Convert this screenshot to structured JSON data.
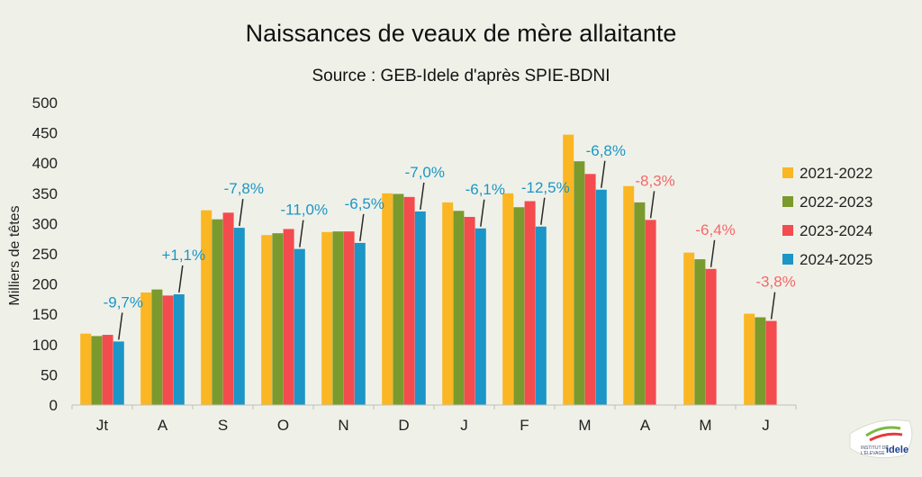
{
  "chart_data": {
    "type": "bar",
    "title": "Naissances de veaux de mère allaitante",
    "subtitle": "Source : GEB-Idele d'après SPIE-BDNI",
    "ylabel": "Milliers de têtes",
    "xlabel": "",
    "ylim": [
      0,
      500
    ],
    "yticks": [
      0,
      50,
      100,
      150,
      200,
      250,
      300,
      350,
      400,
      450,
      500
    ],
    "grid": false,
    "legend": "right",
    "categories": [
      "Jt",
      "A",
      "S",
      "O",
      "N",
      "D",
      "J",
      "F",
      "M",
      "A",
      "M",
      "J"
    ],
    "series": [
      {
        "name": "2021-2022",
        "color": "#fbb623",
        "values": [
          118,
          186,
          322,
          281,
          286,
          350,
          335,
          350,
          447,
          362,
          252,
          151
        ]
      },
      {
        "name": "2022-2023",
        "color": "#7a9a2e",
        "values": [
          114,
          191,
          307,
          284,
          287,
          349,
          321,
          327,
          403,
          335,
          241,
          145
        ]
      },
      {
        "name": "2023-2024",
        "color": "#f44b4f",
        "values": [
          116,
          181,
          318,
          291,
          287,
          344,
          311,
          337,
          382,
          306,
          225,
          139
        ]
      },
      {
        "name": "2024-2025",
        "color": "#1c95c7",
        "values": [
          105,
          183,
          293,
          258,
          268,
          320,
          292,
          295,
          356,
          null,
          null,
          null
        ]
      }
    ],
    "annotations": [
      {
        "category_index": 0,
        "text": "-9,7%",
        "color": "#1c95c7"
      },
      {
        "category_index": 1,
        "text": "+1,1%",
        "color": "#1c95c7"
      },
      {
        "category_index": 2,
        "text": "-7,8%",
        "color": "#1c95c7"
      },
      {
        "category_index": 3,
        "text": "-11,0%",
        "color": "#1c95c7"
      },
      {
        "category_index": 4,
        "text": "-6,5%",
        "color": "#1c95c7"
      },
      {
        "category_index": 5,
        "text": "-7,0%",
        "color": "#1c95c7"
      },
      {
        "category_index": 6,
        "text": "-6,1%",
        "color": "#1c95c7"
      },
      {
        "category_index": 7,
        "text": "-12,5%",
        "color": "#1c95c7"
      },
      {
        "category_index": 8,
        "text": "-6,8%",
        "color": "#1c95c7"
      },
      {
        "category_index": 9,
        "text": "-8,3%",
        "color": "#f4686b"
      },
      {
        "category_index": 10,
        "text": "-6,4%",
        "color": "#f4686b"
      },
      {
        "category_index": 11,
        "text": "-3,8%",
        "color": "#f4686b"
      }
    ]
  },
  "logo": {
    "line1": "INSTITUT DE",
    "line2": "L'ÉLEVAGE",
    "brand": "idele"
  }
}
